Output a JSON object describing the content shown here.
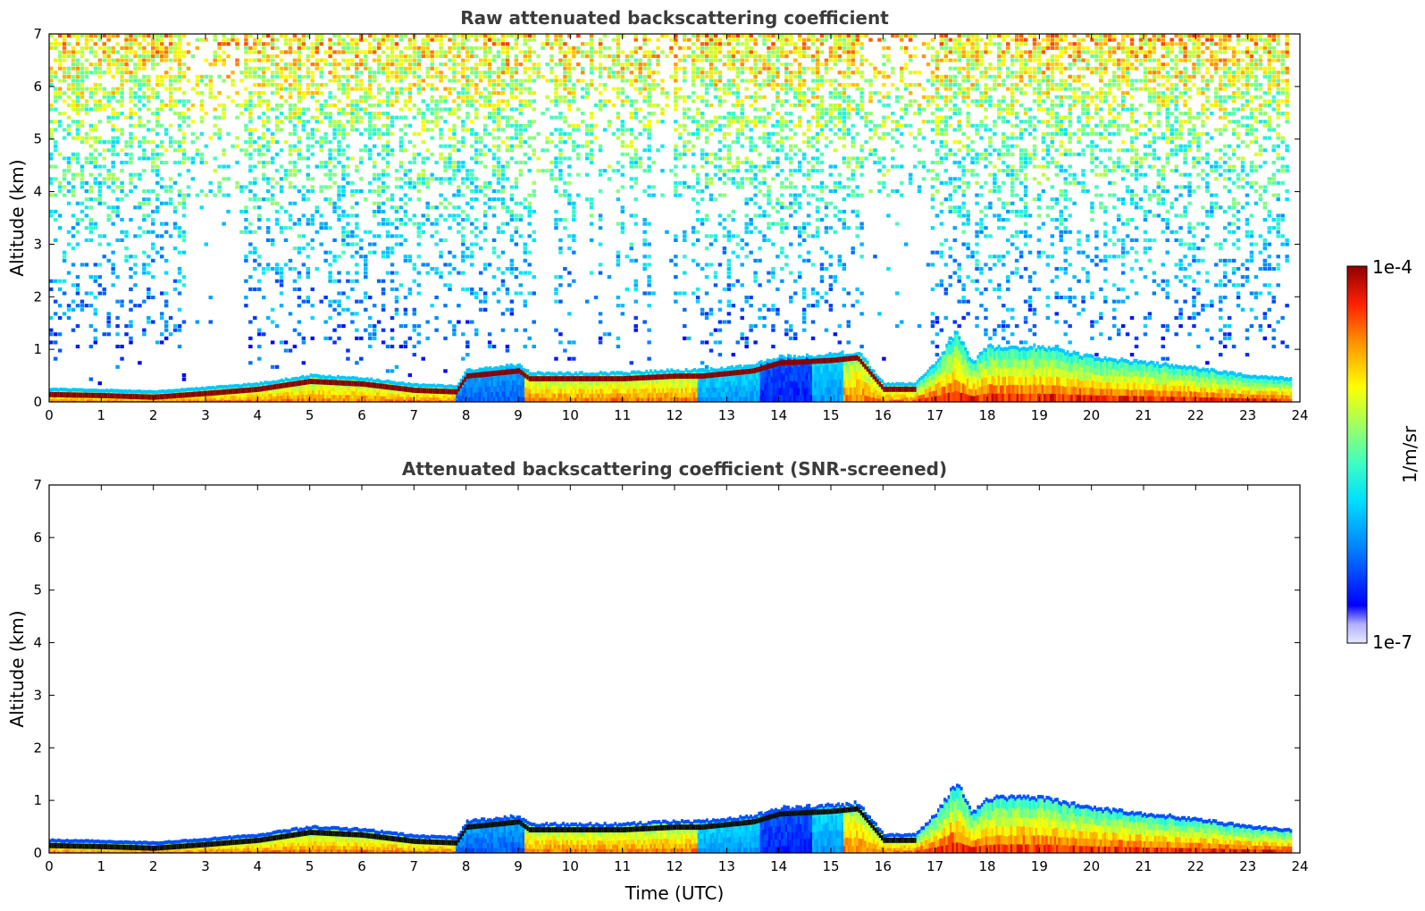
{
  "chart_data": [
    {
      "type": "heatmap",
      "title": "Raw attenuated backscattering coefficient",
      "xlabel": "",
      "ylabel": "Altitude (km)",
      "xlim": [
        0,
        24
      ],
      "ylim": [
        0,
        7
      ],
      "x_ticks": [
        "0",
        "1",
        "2",
        "3",
        "4",
        "5",
        "6",
        "7",
        "8",
        "9",
        "10",
        "11",
        "12",
        "13",
        "14",
        "15",
        "16",
        "17",
        "18",
        "19",
        "20",
        "21",
        "22",
        "23",
        "24"
      ],
      "y_ticks": [
        "0",
        "1",
        "2",
        "3",
        "4",
        "5",
        "6",
        "7"
      ],
      "data_end_hour": 23.8,
      "layer_top_km": [
        [
          0,
          0.2
        ],
        [
          1,
          0.18
        ],
        [
          2,
          0.15
        ],
        [
          3,
          0.22
        ],
        [
          4,
          0.3
        ],
        [
          5,
          0.45
        ],
        [
          6,
          0.4
        ],
        [
          7,
          0.28
        ],
        [
          7.8,
          0.25
        ],
        [
          8,
          0.55
        ],
        [
          9,
          0.65
        ],
        [
          9.2,
          0.5
        ],
        [
          10,
          0.5
        ],
        [
          11,
          0.5
        ],
        [
          12,
          0.55
        ],
        [
          12.5,
          0.55
        ],
        [
          13,
          0.6
        ],
        [
          13.5,
          0.65
        ],
        [
          14,
          0.8
        ],
        [
          15,
          0.85
        ],
        [
          15.5,
          0.9
        ],
        [
          16,
          0.3
        ],
        [
          16.6,
          0.3
        ],
        [
          17,
          0.7
        ],
        [
          17.4,
          1.3
        ],
        [
          17.7,
          0.7
        ],
        [
          18,
          1.0
        ],
        [
          19,
          1.0
        ],
        [
          20,
          0.8
        ],
        [
          21,
          0.7
        ],
        [
          22,
          0.6
        ],
        [
          23,
          0.45
        ],
        [
          23.8,
          0.4
        ]
      ],
      "noise_signal": "dense scattered noise above the boundary layer up to 7 km, sparse gaps near 3-4 UTC, 9-12 UTC and 16-17 UTC"
    },
    {
      "type": "heatmap",
      "title": "Attenuated backscattering coefficient (SNR-screened)",
      "xlabel": "Time (UTC)",
      "ylabel": "Altitude (km)",
      "xlim": [
        0,
        24
      ],
      "ylim": [
        0,
        7
      ],
      "x_ticks": [
        "0",
        "1",
        "2",
        "3",
        "4",
        "5",
        "6",
        "7",
        "8",
        "9",
        "10",
        "11",
        "12",
        "13",
        "14",
        "15",
        "16",
        "17",
        "18",
        "19",
        "20",
        "21",
        "22",
        "23",
        "24"
      ],
      "y_ticks": [
        "0",
        "1",
        "2",
        "3",
        "4",
        "5",
        "6",
        "7"
      ],
      "data_end_hour": 23.8,
      "layer_top_km": [
        [
          0,
          0.2
        ],
        [
          1,
          0.18
        ],
        [
          2,
          0.15
        ],
        [
          3,
          0.22
        ],
        [
          4,
          0.3
        ],
        [
          5,
          0.45
        ],
        [
          6,
          0.4
        ],
        [
          7,
          0.28
        ],
        [
          7.8,
          0.25
        ],
        [
          8,
          0.55
        ],
        [
          9,
          0.65
        ],
        [
          9.2,
          0.5
        ],
        [
          10,
          0.5
        ],
        [
          11,
          0.5
        ],
        [
          12,
          0.55
        ],
        [
          12.5,
          0.55
        ],
        [
          13,
          0.6
        ],
        [
          13.5,
          0.65
        ],
        [
          14,
          0.8
        ],
        [
          15,
          0.85
        ],
        [
          15.5,
          0.9
        ],
        [
          16,
          0.3
        ],
        [
          16.6,
          0.3
        ],
        [
          17,
          0.7
        ],
        [
          17.4,
          1.3
        ],
        [
          17.7,
          0.7
        ],
        [
          18,
          1.0
        ],
        [
          19,
          1.0
        ],
        [
          20,
          0.8
        ],
        [
          21,
          0.7
        ],
        [
          22,
          0.6
        ],
        [
          23,
          0.45
        ],
        [
          23.8,
          0.4
        ]
      ]
    }
  ],
  "colorbar": {
    "label": "1/m/sr",
    "max_label": "1e-4",
    "min_label": "1e-7",
    "colormap": "jet",
    "colors": [
      "#e8e8ff",
      "#b0b0ff",
      "#0000ff",
      "#0080ff",
      "#00e0ff",
      "#40ffc0",
      "#a0ff60",
      "#ffff00",
      "#ff9000",
      "#ff2000",
      "#900000"
    ]
  }
}
